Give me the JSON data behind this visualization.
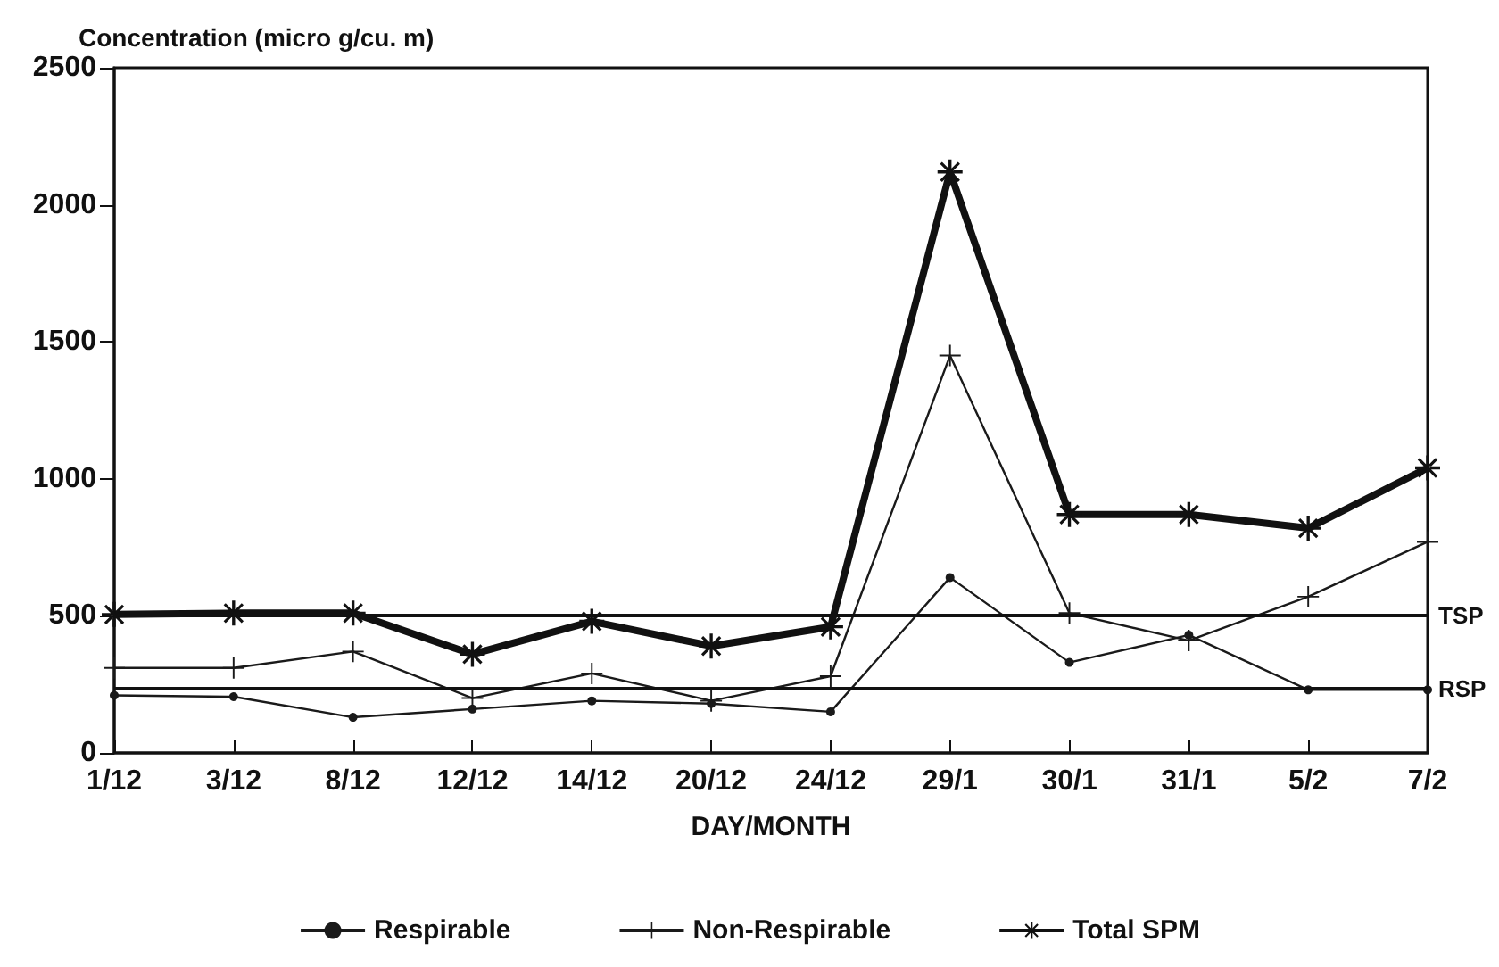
{
  "chart_data": {
    "type": "line",
    "ylabel": "Concentration (micro g/cu. m)",
    "xlabel": "DAY/MONTH",
    "categories": [
      "1/12",
      "3/12",
      "8/12",
      "12/12",
      "14/12",
      "20/12",
      "24/12",
      "29/1",
      "30/1",
      "31/1",
      "5/2",
      "7/2"
    ],
    "series": [
      {
        "name": "Respirable",
        "color": "#1a1a1a",
        "marker": "circle",
        "values": [
          210,
          205,
          130,
          160,
          190,
          180,
          150,
          640,
          330,
          430,
          230,
          230
        ]
      },
      {
        "name": "Non-Respirable",
        "color": "#1a1a1a",
        "marker": "cross",
        "values": [
          310,
          310,
          370,
          200,
          290,
          190,
          280,
          1450,
          510,
          410,
          570,
          770
        ]
      },
      {
        "name": "Total SPM",
        "color": "#111111",
        "marker": "star",
        "values": [
          505,
          510,
          510,
          360,
          480,
          390,
          460,
          2120,
          870,
          870,
          820,
          1040
        ]
      }
    ],
    "ylim": [
      0,
      2500
    ],
    "yticks": [
      0,
      500,
      1000,
      1500,
      2000,
      2500
    ],
    "ref_lines": [
      {
        "axis": "y",
        "value": 500,
        "label": "TSP",
        "color": "#111111",
        "line_style": "solid"
      },
      {
        "axis": "y",
        "value": 235,
        "label": "RSP",
        "color": "#111111",
        "line_style": "solid"
      }
    ],
    "grid": false,
    "legend": "bottom",
    "line_style": "solid"
  }
}
